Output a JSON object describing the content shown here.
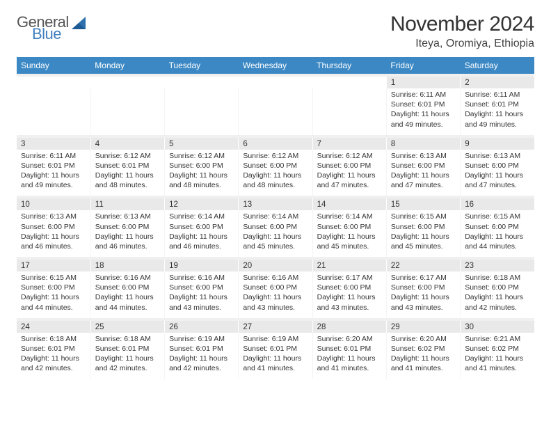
{
  "brand": {
    "word1": "General",
    "word2": "Blue",
    "mark_color": "#2e6fae"
  },
  "title": "November 2024",
  "location": "Iteya, Oromiya, Ethiopia",
  "colors": {
    "header_blue": "#3b88c4",
    "header_text": "#ffffff",
    "daynum_bg": "#e9e9e9",
    "spacer_bg": "#f0f0f0",
    "text": "#333333",
    "brand_grey": "#555555",
    "brand_blue": "#3f7fbf"
  },
  "day_names": [
    "Sunday",
    "Monday",
    "Tuesday",
    "Wednesday",
    "Thursday",
    "Friday",
    "Saturday"
  ],
  "weeks": [
    [
      null,
      null,
      null,
      null,
      null,
      {
        "n": "1",
        "sr": "6:11 AM",
        "ss": "6:01 PM",
        "dl": "11 hours and 49 minutes."
      },
      {
        "n": "2",
        "sr": "6:11 AM",
        "ss": "6:01 PM",
        "dl": "11 hours and 49 minutes."
      }
    ],
    [
      {
        "n": "3",
        "sr": "6:11 AM",
        "ss": "6:01 PM",
        "dl": "11 hours and 49 minutes."
      },
      {
        "n": "4",
        "sr": "6:12 AM",
        "ss": "6:01 PM",
        "dl": "11 hours and 48 minutes."
      },
      {
        "n": "5",
        "sr": "6:12 AM",
        "ss": "6:00 PM",
        "dl": "11 hours and 48 minutes."
      },
      {
        "n": "6",
        "sr": "6:12 AM",
        "ss": "6:00 PM",
        "dl": "11 hours and 48 minutes."
      },
      {
        "n": "7",
        "sr": "6:12 AM",
        "ss": "6:00 PM",
        "dl": "11 hours and 47 minutes."
      },
      {
        "n": "8",
        "sr": "6:13 AM",
        "ss": "6:00 PM",
        "dl": "11 hours and 47 minutes."
      },
      {
        "n": "9",
        "sr": "6:13 AM",
        "ss": "6:00 PM",
        "dl": "11 hours and 47 minutes."
      }
    ],
    [
      {
        "n": "10",
        "sr": "6:13 AM",
        "ss": "6:00 PM",
        "dl": "11 hours and 46 minutes."
      },
      {
        "n": "11",
        "sr": "6:13 AM",
        "ss": "6:00 PM",
        "dl": "11 hours and 46 minutes."
      },
      {
        "n": "12",
        "sr": "6:14 AM",
        "ss": "6:00 PM",
        "dl": "11 hours and 46 minutes."
      },
      {
        "n": "13",
        "sr": "6:14 AM",
        "ss": "6:00 PM",
        "dl": "11 hours and 45 minutes."
      },
      {
        "n": "14",
        "sr": "6:14 AM",
        "ss": "6:00 PM",
        "dl": "11 hours and 45 minutes."
      },
      {
        "n": "15",
        "sr": "6:15 AM",
        "ss": "6:00 PM",
        "dl": "11 hours and 45 minutes."
      },
      {
        "n": "16",
        "sr": "6:15 AM",
        "ss": "6:00 PM",
        "dl": "11 hours and 44 minutes."
      }
    ],
    [
      {
        "n": "17",
        "sr": "6:15 AM",
        "ss": "6:00 PM",
        "dl": "11 hours and 44 minutes."
      },
      {
        "n": "18",
        "sr": "6:16 AM",
        "ss": "6:00 PM",
        "dl": "11 hours and 44 minutes."
      },
      {
        "n": "19",
        "sr": "6:16 AM",
        "ss": "6:00 PM",
        "dl": "11 hours and 43 minutes."
      },
      {
        "n": "20",
        "sr": "6:16 AM",
        "ss": "6:00 PM",
        "dl": "11 hours and 43 minutes."
      },
      {
        "n": "21",
        "sr": "6:17 AM",
        "ss": "6:00 PM",
        "dl": "11 hours and 43 minutes."
      },
      {
        "n": "22",
        "sr": "6:17 AM",
        "ss": "6:00 PM",
        "dl": "11 hours and 43 minutes."
      },
      {
        "n": "23",
        "sr": "6:18 AM",
        "ss": "6:00 PM",
        "dl": "11 hours and 42 minutes."
      }
    ],
    [
      {
        "n": "24",
        "sr": "6:18 AM",
        "ss": "6:01 PM",
        "dl": "11 hours and 42 minutes."
      },
      {
        "n": "25",
        "sr": "6:18 AM",
        "ss": "6:01 PM",
        "dl": "11 hours and 42 minutes."
      },
      {
        "n": "26",
        "sr": "6:19 AM",
        "ss": "6:01 PM",
        "dl": "11 hours and 42 minutes."
      },
      {
        "n": "27",
        "sr": "6:19 AM",
        "ss": "6:01 PM",
        "dl": "11 hours and 41 minutes."
      },
      {
        "n": "28",
        "sr": "6:20 AM",
        "ss": "6:01 PM",
        "dl": "11 hours and 41 minutes."
      },
      {
        "n": "29",
        "sr": "6:20 AM",
        "ss": "6:02 PM",
        "dl": "11 hours and 41 minutes."
      },
      {
        "n": "30",
        "sr": "6:21 AM",
        "ss": "6:02 PM",
        "dl": "11 hours and 41 minutes."
      }
    ]
  ],
  "labels": {
    "sunrise": "Sunrise:",
    "sunset": "Sunset:",
    "daylight": "Daylight:"
  }
}
